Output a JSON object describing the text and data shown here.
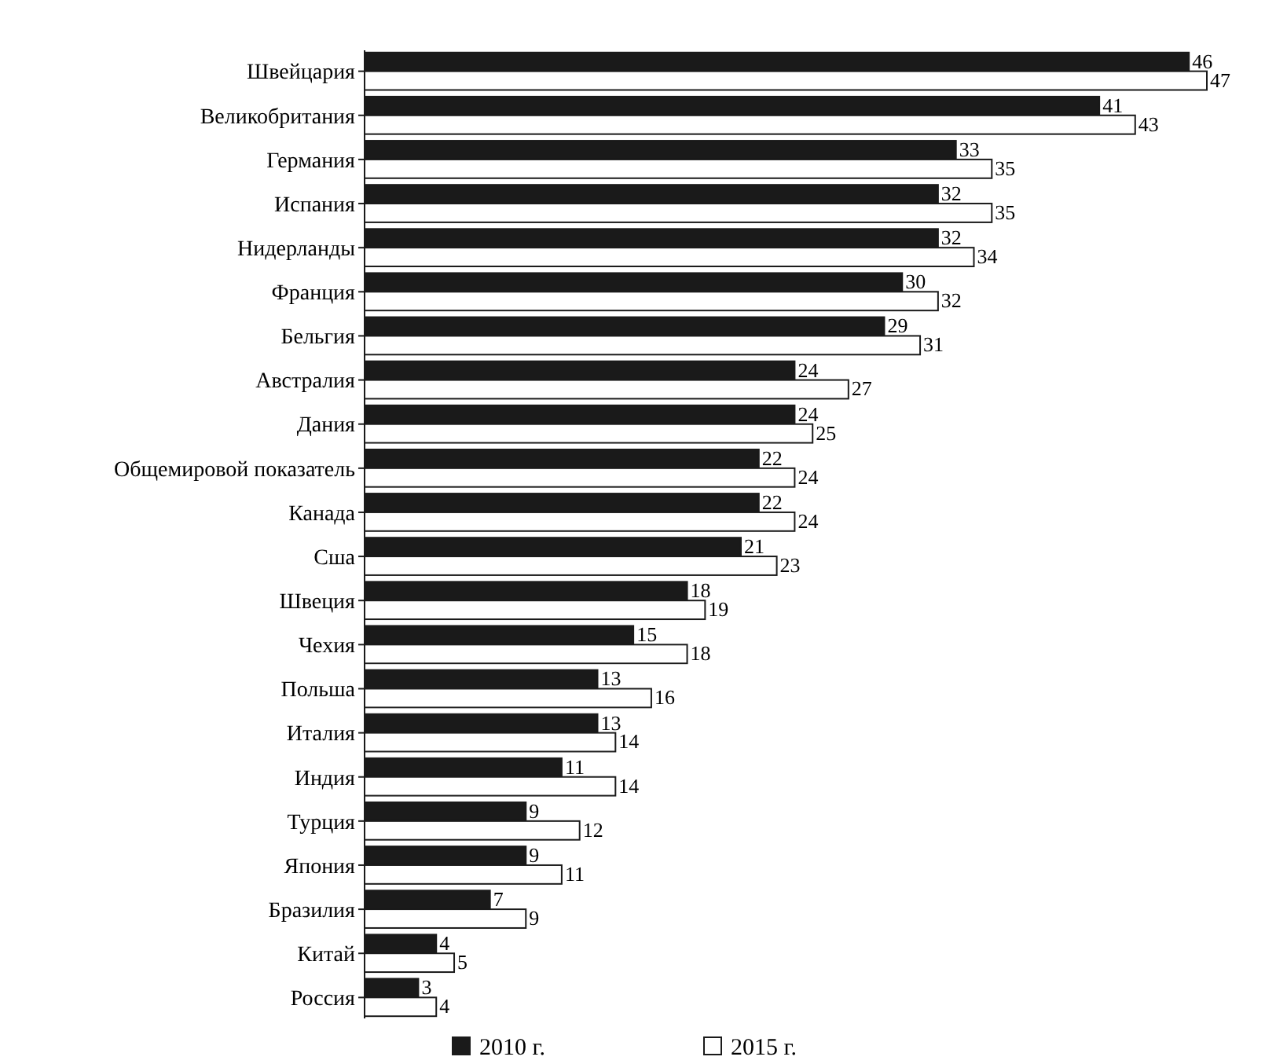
{
  "chart_data": {
    "type": "bar",
    "orientation": "horizontal",
    "categories": [
      "Швейцария",
      "Великобритания",
      "Германия",
      "Испания",
      "Нидерланды",
      "Франция",
      "Бельгия",
      "Австралия",
      "Дания",
      "Общемировой показатель",
      "Канада",
      "Сша",
      "Швеция",
      "Чехия",
      "Польша",
      "Италия",
      "Индия",
      "Турция",
      "Япония",
      "Бразилия",
      "Китай",
      "Россия"
    ],
    "series": [
      {
        "name": "2010 г.",
        "color": "#1a1a1a",
        "values": [
          46,
          41,
          33,
          32,
          32,
          30,
          29,
          24,
          24,
          22,
          22,
          21,
          18,
          15,
          13,
          13,
          11,
          9,
          9,
          7,
          4,
          3
        ]
      },
      {
        "name": "2015 г.",
        "color": "#ffffff",
        "values": [
          47,
          43,
          35,
          35,
          34,
          32,
          31,
          27,
          25,
          24,
          24,
          23,
          19,
          18,
          16,
          14,
          14,
          12,
          11,
          9,
          5,
          4
        ]
      }
    ],
    "data_labels": true,
    "legend": "bottom"
  }
}
